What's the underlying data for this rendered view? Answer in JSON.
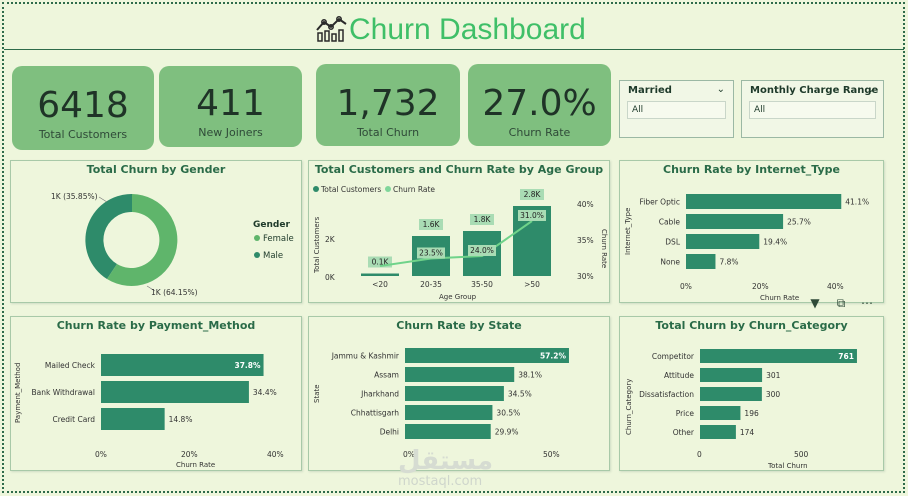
{
  "header": {
    "title": "Churn Dashboard",
    "icon": "line-chart-icon"
  },
  "kpis": [
    {
      "value": "6418",
      "label": "Total Customers"
    },
    {
      "value": "411",
      "label": "New Joiners"
    },
    {
      "value": "1,732",
      "label": "Total Churn"
    },
    {
      "value": "27.0%",
      "label": "Churn Rate"
    }
  ],
  "slicers": [
    {
      "label": "Married",
      "value": "All"
    },
    {
      "label": "Monthly Charge Range",
      "value": "All"
    }
  ],
  "colors": {
    "dark": "#2e8b6a",
    "light": "#5fb56b",
    "accent": "#3fbf68"
  },
  "charts": {
    "gender": {
      "title": "Total Churn by Gender",
      "legend_title": "Gender",
      "legend": [
        "Female",
        "Male"
      ],
      "labels": [
        "1K (35.85%)",
        "1K (64.15%)"
      ]
    },
    "age": {
      "title": "Total Customers and Churn Rate by Age Group",
      "legend": [
        "Total Customers",
        "Churn Rate"
      ],
      "ylabel": "Total Customers",
      "y2label": "Churn Rate",
      "xlabel": "Age Group",
      "yticks": [
        "0K",
        "2K"
      ],
      "y2ticks": [
        "30%",
        "35%",
        "40%"
      ]
    },
    "internet": {
      "title": "Churn Rate by Internet_Type",
      "ylabel": "Internet_Type",
      "xlabel": "Churn Rate",
      "xticks": [
        "0%",
        "20%",
        "40%"
      ]
    },
    "payment": {
      "title": "Churn Rate by Payment_Method",
      "ylabel": "Payment_Method",
      "xlabel": "Churn Rate",
      "xticks": [
        "0%",
        "20%",
        "40%"
      ]
    },
    "state": {
      "title": "Churn Rate by State",
      "ylabel": "State",
      "xticks": [
        "0%",
        "50%"
      ]
    },
    "category": {
      "title": "Total Churn by Churn_Category",
      "ylabel": "Churn_Category",
      "xlabel": "Total Churn",
      "xticks": [
        "0",
        "500"
      ]
    }
  },
  "chart_data": [
    {
      "type": "pie",
      "title": "Total Churn by Gender",
      "categories": [
        "Female",
        "Male"
      ],
      "values": [
        64.15,
        35.85
      ]
    },
    {
      "type": "bar",
      "title": "Total Customers and Churn Rate by Age Group",
      "categories": [
        "<20",
        "20-35",
        "35-50",
        ">50"
      ],
      "series": [
        {
          "name": "Total Customers",
          "values": [
            100,
            1600,
            1800,
            2800
          ],
          "data_labels": [
            "0.1K",
            "1.6K",
            "1.8K",
            "2.8K"
          ]
        },
        {
          "name": "Churn Rate",
          "values": [
            22.0,
            23.5,
            24.0,
            31.0
          ],
          "data_labels": [
            "",
            "23.5%",
            "24.0%",
            "31.0%"
          ]
        }
      ],
      "xlabel": "Age Group",
      "ylabel": "Total Customers",
      "y2label": "Churn Rate"
    },
    {
      "type": "bar",
      "title": "Churn Rate by Internet_Type",
      "categories": [
        "Fiber Optic",
        "Cable",
        "DSL",
        "None"
      ],
      "values": [
        41.1,
        25.7,
        19.4,
        7.8
      ],
      "data_labels": [
        "41.1%",
        "25.7%",
        "19.4%",
        "7.8%"
      ],
      "xlabel": "Churn Rate",
      "ylabel": "Internet_Type",
      "xlim": [
        0,
        45
      ]
    },
    {
      "type": "bar",
      "title": "Churn Rate by Payment_Method",
      "categories": [
        "Mailed Check",
        "Bank Withdrawal",
        "Credit Card"
      ],
      "values": [
        37.8,
        34.4,
        14.8
      ],
      "data_labels": [
        "37.8%",
        "34.4%",
        "14.8%"
      ],
      "xlabel": "Churn Rate",
      "ylabel": "Payment_Method",
      "xlim": [
        0,
        40
      ]
    },
    {
      "type": "bar",
      "title": "Churn Rate by State",
      "categories": [
        "Jammu & Kashmir",
        "Assam",
        "Jharkhand",
        "Chhattisgarh",
        "Delhi"
      ],
      "values": [
        57.2,
        38.1,
        34.5,
        30.5,
        29.9
      ],
      "data_labels": [
        "57.2%",
        "38.1%",
        "34.5%",
        "30.5%",
        "29.9%"
      ],
      "ylabel": "State",
      "xlim": [
        0,
        60
      ]
    },
    {
      "type": "bar",
      "title": "Total Churn by Churn_Category",
      "categories": [
        "Competitor",
        "Attitude",
        "Dissatisfaction",
        "Price",
        "Other"
      ],
      "values": [
        761,
        301,
        300,
        196,
        174
      ],
      "data_labels": [
        "761",
        "301",
        "300",
        "196",
        "174"
      ],
      "xlabel": "Total Churn",
      "ylabel": "Churn_Category",
      "xlim": [
        0,
        800
      ]
    }
  ],
  "watermark": {
    "text": "مستقل",
    "site": "mostaql.com"
  }
}
